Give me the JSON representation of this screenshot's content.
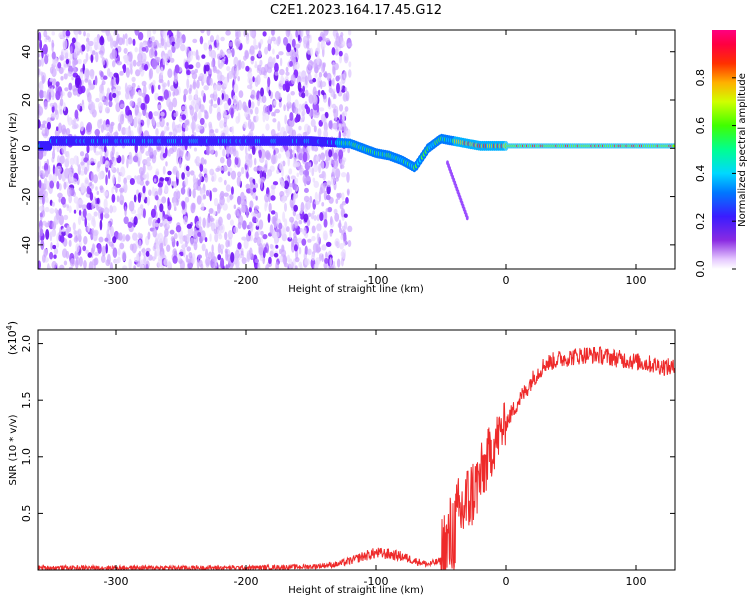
{
  "title": "C2E1.2023.164.17.45.G12",
  "colors": {
    "snr_line": "#ee2a2a",
    "spectrogram_low": "#d9b8f5",
    "spectrogram_mid": "#7a1dff",
    "background": "#ffffff"
  },
  "chart_data": [
    {
      "type": "heatmap",
      "name": "spectrogram",
      "xlabel": "Height of straight line (km)",
      "ylabel": "Frequency (Hz)",
      "xlim": [
        -360,
        130
      ],
      "ylim": [
        -50,
        49
      ],
      "x_ticks": [
        -300,
        -200,
        -100,
        0,
        100
      ],
      "x_tick_labels": [
        "-300",
        "-200",
        "-100",
        "0",
        "100"
      ],
      "y_ticks": [
        -40,
        -20,
        0,
        20,
        40
      ],
      "y_tick_labels": [
        "-40",
        "-20",
        "0",
        "20",
        "40"
      ],
      "colorbar": {
        "label": "Normalized spectral amplitude",
        "range": [
          0,
          1
        ],
        "ticks": [
          0.0,
          0.2,
          0.4,
          0.6,
          0.8
        ],
        "tick_labels": [
          "0.0",
          "0.2",
          "0.4",
          "0.6",
          "0.8"
        ],
        "colormap": "rainbow (white/violet → blue → cyan → green → yellow → red → magenta)"
      },
      "features": {
        "broadband_noise_region_x": [
          -360,
          -130
        ],
        "carrier_track": [
          {
            "x": -350,
            "f": 3
          },
          {
            "x": -300,
            "f": 3
          },
          {
            "x": -250,
            "f": 3
          },
          {
            "x": -200,
            "f": 3
          },
          {
            "x": -150,
            "f": 3
          },
          {
            "x": -120,
            "f": 2
          },
          {
            "x": -100,
            "f": -2
          },
          {
            "x": -90,
            "f": -3
          },
          {
            "x": -80,
            "f": -5
          },
          {
            "x": -70,
            "f": -8
          },
          {
            "x": -60,
            "f": 0
          },
          {
            "x": -50,
            "f": 4
          },
          {
            "x": -40,
            "f": 3
          },
          {
            "x": -30,
            "f": 2
          },
          {
            "x": -20,
            "f": 1
          },
          {
            "x": 0,
            "f": 1
          },
          {
            "x": 50,
            "f": 1
          },
          {
            "x": 100,
            "f": 1
          },
          {
            "x": 130,
            "f": 1
          }
        ]
      }
    },
    {
      "type": "line",
      "name": "snr",
      "xlabel": "Height of straight line (km)",
      "ylabel": "SNR (10 * v/v)",
      "y_scale_label": "(x10",
      "y_scale_exponent": "4",
      "y_scale_close": ")",
      "xlim": [
        -360,
        130
      ],
      "ylim": [
        0,
        2.12
      ],
      "x_ticks": [
        -300,
        -200,
        -100,
        0,
        100
      ],
      "x_tick_labels": [
        "-300",
        "-200",
        "-100",
        "0",
        "100"
      ],
      "y_ticks": [
        0.5,
        1.0,
        1.5,
        2.0
      ],
      "y_tick_labels": [
        "0.5",
        "1.0",
        "1.5",
        "2.0"
      ],
      "x": [
        -360,
        -300,
        -250,
        -200,
        -150,
        -130,
        -120,
        -110,
        -100,
        -90,
        -80,
        -70,
        -60,
        -50,
        -45,
        -40,
        -35,
        -30,
        -25,
        -20,
        -15,
        -10,
        -5,
        0,
        5,
        10,
        15,
        20,
        25,
        30,
        40,
        50,
        60,
        70,
        80,
        90,
        100,
        110,
        120,
        130
      ],
      "y": [
        0.02,
        0.02,
        0.02,
        0.02,
        0.03,
        0.05,
        0.08,
        0.12,
        0.15,
        0.14,
        0.12,
        0.08,
        0.05,
        0.08,
        0.2,
        0.35,
        0.5,
        0.6,
        0.7,
        0.8,
        0.95,
        1.1,
        1.2,
        1.3,
        1.4,
        1.5,
        1.58,
        1.68,
        1.75,
        1.82,
        1.86,
        1.88,
        1.9,
        1.9,
        1.88,
        1.86,
        1.84,
        1.82,
        1.8,
        1.78
      ]
    }
  ]
}
